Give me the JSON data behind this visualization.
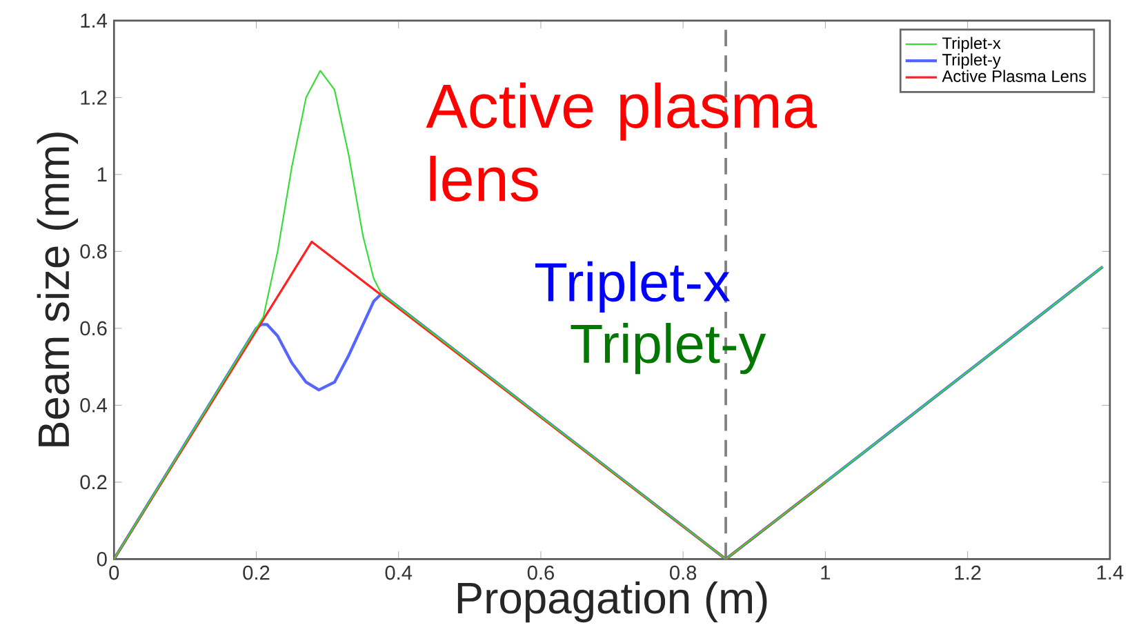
{
  "chart_data": {
    "type": "line",
    "xlabel": "Propagation (m)",
    "ylabel": "Beam size (mm)",
    "xlim": [
      0,
      1.4
    ],
    "ylim": [
      0,
      1.4
    ],
    "xticks": [
      0,
      0.2,
      0.4,
      0.6,
      0.8,
      1,
      1.2,
      1.4
    ],
    "yticks": [
      0,
      0.2,
      0.4,
      0.6,
      0.8,
      1,
      1.2,
      1.4
    ],
    "legend": "top right",
    "grid": false,
    "marker": "none",
    "line_style": "solid",
    "series": [
      {
        "name": "Triplet-x",
        "color": "#33dd33",
        "x": [
          0,
          0.2,
          0.21,
          0.23,
          0.25,
          0.27,
          0.29,
          0.31,
          0.33,
          0.35,
          0.365,
          0.376,
          0.86,
          1.0,
          1.39
        ],
        "values": [
          0,
          0.6,
          0.63,
          0.8,
          1.02,
          1.2,
          1.27,
          1.22,
          1.05,
          0.84,
          0.73,
          0.69,
          0,
          0.2,
          0.76
        ]
      },
      {
        "name": "Triplet-y",
        "color": "#5566ff",
        "x": [
          0,
          0.2,
          0.207,
          0.215,
          0.23,
          0.25,
          0.27,
          0.288,
          0.31,
          0.33,
          0.35,
          0.365,
          0.376,
          0.86,
          1.0,
          1.39
        ],
        "values": [
          0,
          0.6,
          0.61,
          0.61,
          0.58,
          0.51,
          0.46,
          0.44,
          0.46,
          0.53,
          0.61,
          0.67,
          0.69,
          0,
          0.2,
          0.76
        ]
      },
      {
        "name": "Active Plasma Lens",
        "color": "#ff2222",
        "x": [
          0,
          0.278,
          0.86,
          1.0
        ],
        "values": [
          0,
          0.825,
          0,
          0.2
        ]
      }
    ],
    "ref_lines": [
      {
        "axis": "x",
        "value": 0.86,
        "color": "#808080",
        "line_style": "dashed"
      }
    ],
    "annotations": [
      "Active plasma lens",
      "Triplet-x",
      "Triplet-y"
    ]
  }
}
